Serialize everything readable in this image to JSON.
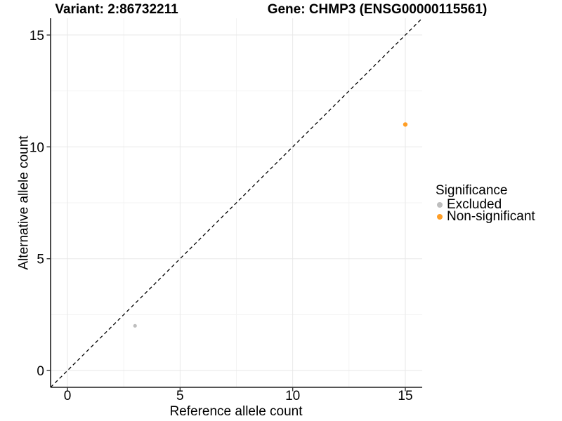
{
  "chart_data": {
    "type": "scatter",
    "title_left": "Variant: 2:86732211",
    "title_right": "Gene: CHMP3 (ENSG00000115561)",
    "xlabel": "Reference allele count",
    "ylabel": "Alternative allele count",
    "xlim": [
      -0.75,
      15.75
    ],
    "ylim": [
      -0.75,
      15.75
    ],
    "x_ticks": [
      0,
      5,
      10,
      15
    ],
    "y_ticks": [
      0,
      5,
      10,
      15
    ],
    "x_tick_labels": [
      "0",
      "5",
      "10",
      "15"
    ],
    "y_tick_labels": [
      "0",
      "5",
      "10",
      "15"
    ],
    "x_minor_ticks": [
      2.5,
      7.5,
      12.5
    ],
    "y_minor_ticks": [
      2.5,
      7.5,
      12.5
    ],
    "grid": "major+minor",
    "identity_line": {
      "slope": 1,
      "intercept": 0,
      "style": "dashed",
      "color": "#000000"
    },
    "legend": {
      "title": "Significance",
      "position": "right"
    },
    "series": [
      {
        "name": "Excluded",
        "color": "#bebebe",
        "point_radius": 2.6,
        "points": [
          [
            3,
            2
          ]
        ]
      },
      {
        "name": "Non-significant",
        "color": "#ff9e26",
        "point_radius": 3.2,
        "points": [
          [
            15,
            11
          ]
        ]
      }
    ]
  },
  "colors": {
    "background": "#ffffff",
    "grid_major": "#e8e8e8",
    "grid_minor": "#f3f3f3",
    "axis_line": "#1f1f1f",
    "tick_mark": "#333333",
    "text": "#000000"
  }
}
